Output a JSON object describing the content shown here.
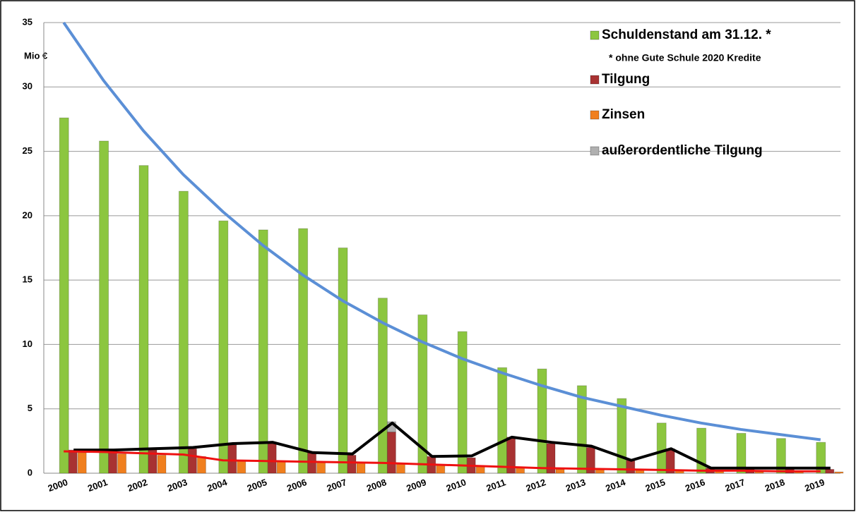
{
  "chart_data": {
    "type": "bar",
    "y_unit_label": "Mio €",
    "legend_note": "* ohne Gute Schule 2020 Kredite",
    "categories": [
      "2000",
      "2001",
      "2002",
      "2003",
      "2004",
      "2005",
      "2006",
      "2007",
      "2008",
      "2009",
      "2010",
      "2011",
      "2012",
      "2013",
      "2014",
      "2015",
      "2016",
      "2017",
      "2018",
      "2019"
    ],
    "series": [
      {
        "name": "Schuldenstand am 31.12. *",
        "color": "#8cc63f",
        "values": [
          27.6,
          25.8,
          23.9,
          21.9,
          19.6,
          18.9,
          19.0,
          17.5,
          13.6,
          12.3,
          11.0,
          8.2,
          8.1,
          6.8,
          5.8,
          3.9,
          3.5,
          3.1,
          2.7,
          2.4
        ]
      },
      {
        "name": "Tilgung",
        "color": "#a83232",
        "values": [
          1.8,
          1.8,
          1.9,
          1.9,
          2.2,
          2.3,
          1.6,
          1.4,
          3.2,
          1.3,
          1.2,
          2.8,
          2.3,
          2.0,
          1.0,
          1.9,
          0.4,
          0.4,
          0.4,
          0.3
        ]
      },
      {
        "name": "Zinsen",
        "color": "#f07f1e",
        "values": [
          1.6,
          1.5,
          1.4,
          1.3,
          1.0,
          0.9,
          0.9,
          0.8,
          0.7,
          0.6,
          0.5,
          0.4,
          0.3,
          0.3,
          0.3,
          0.2,
          0.2,
          0.1,
          0.1,
          0.1
        ]
      },
      {
        "name": "außerordentliche Tilgung",
        "color": "#b0b0b0",
        "stacked_on": 1,
        "values": [
          0,
          0,
          0,
          0,
          0,
          0,
          0,
          0,
          0.8,
          0,
          0,
          0,
          0,
          0,
          0,
          0,
          0,
          0,
          0,
          0
        ]
      }
    ],
    "lines": [
      {
        "color": "#5b8fd6",
        "width": 4,
        "values": [
          35,
          30.5,
          26.6,
          23.2,
          20.3,
          17.7,
          15.4,
          13.4,
          11.7,
          10.2,
          8.9,
          7.8,
          6.8,
          5.9,
          5.2,
          4.5,
          3.9,
          3.4,
          3.0,
          2.6
        ]
      },
      {
        "color": "#000000",
        "width": 4,
        "values": [
          1.8,
          1.8,
          1.9,
          2.0,
          2.3,
          2.4,
          1.6,
          1.5,
          3.9,
          1.3,
          1.35,
          2.8,
          2.4,
          2.1,
          1.0,
          1.9,
          0.4,
          0.4,
          0.4,
          0.4
        ]
      },
      {
        "color": "#ee1111",
        "width": 3,
        "values": [
          1.7,
          1.65,
          1.55,
          1.45,
          1.0,
          0.95,
          0.9,
          0.85,
          0.8,
          0.7,
          0.6,
          0.5,
          0.4,
          0.35,
          0.3,
          0.25,
          0.2,
          0.2,
          0.15,
          0.15
        ]
      }
    ],
    "ylim": [
      0,
      35
    ],
    "yticks": [
      0,
      5,
      10,
      15,
      20,
      25,
      30,
      35
    ],
    "grid": true
  }
}
